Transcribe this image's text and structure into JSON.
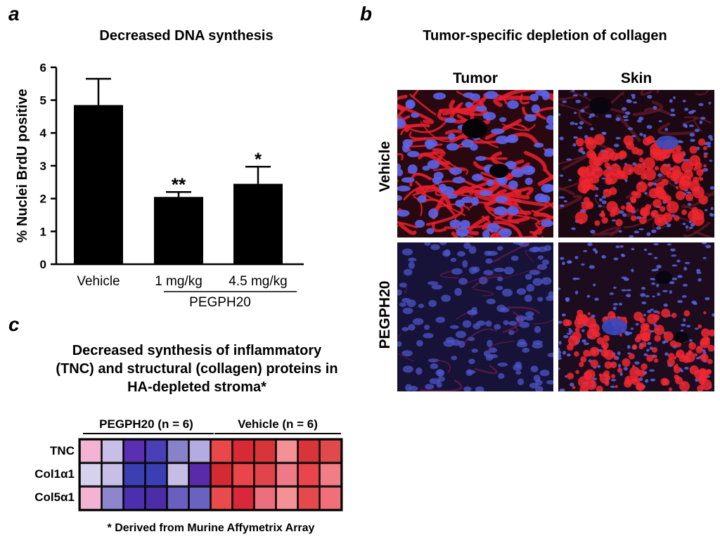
{
  "panels": {
    "a": {
      "letter": "a",
      "title": "Decreased DNA synthesis",
      "group_label": "PEGPH20"
    },
    "b": {
      "letter": "b",
      "title": "Tumor-specific depletion of  collagen",
      "columns": [
        "Tumor",
        "Skin"
      ],
      "rows": [
        "Vehicle",
        "PEGPH20"
      ]
    },
    "c": {
      "letter": "c",
      "title_lines": [
        "Decreased synthesis of inflammatory",
        "(TNC) and structural (collagen) proteins in",
        "HA-depleted stroma*"
      ],
      "groups": [
        "PEGPH20 (n = 6)",
        "Vehicle (n = 6)"
      ],
      "row_labels": [
        "TNC",
        "Col1α1",
        "Col5α1"
      ],
      "footnote": "* Derived from Murine Affymetrix Array",
      "colors": [
        [
          "#f2b4d2",
          "#c7bfe6",
          "#5a2fb2",
          "#4a3fb6",
          "#8882c9",
          "#b4abe0",
          "#e9484a",
          "#d82a34",
          "#d8353b",
          "#f39195",
          "#d8343a",
          "#e04a4c"
        ],
        [
          "#d6d2ee",
          "#c7bfe6",
          "#3b3fb2",
          "#3a40b4",
          "#c6bde6",
          "#5a2ba9",
          "#d42a32",
          "#e9454a",
          "#e2444b",
          "#ef7986",
          "#e9454a",
          "#f17d86"
        ],
        [
          "#f2b4d2",
          "#8d86cc",
          "#4c2fae",
          "#4b2da8",
          "#6a5ec0",
          "#6a62c0",
          "#e94a4c",
          "#d8283a",
          "#ed6e7c",
          "#f39195",
          "#e44a4c",
          "#f0707a"
        ]
      ]
    }
  },
  "chart_data": {
    "type": "bar",
    "title": "Decreased DNA synthesis",
    "categories": [
      "Vehicle",
      "1 mg/kg",
      "4.5 mg/kg"
    ],
    "values": [
      4.85,
      2.05,
      2.45
    ],
    "errors": [
      0.8,
      0.15,
      0.52
    ],
    "significance": [
      "",
      "**",
      "*"
    ],
    "ylabel": "% Nuclei BrdU positive",
    "xlabel": "",
    "ylim": [
      0,
      6
    ],
    "yticks": [
      0,
      1,
      2,
      3,
      4,
      5,
      6
    ],
    "grid": false,
    "color": "#000000"
  }
}
